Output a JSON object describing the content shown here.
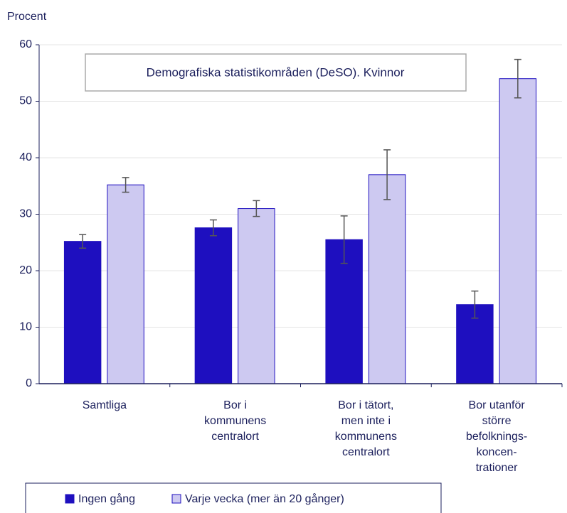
{
  "chart_data": {
    "type": "bar",
    "title": "Demografiska statistikområden (DeSO). Kvinnor",
    "y_label": "Procent",
    "categories": [
      "Samtliga",
      "Bor i\nkommunens\ncentralort",
      "Bor i tätort,\nmen inte i\nkommunens\ncentralort",
      "Bor utanför\nstörre\nbefolknings-\nkoncen-\ntrationer"
    ],
    "series": [
      {
        "name": "Ingen gång",
        "color": "#1e0fbf",
        "values": [
          25.2,
          27.6,
          25.5,
          14.0
        ],
        "errors": [
          1.2,
          1.4,
          4.2,
          2.4
        ]
      },
      {
        "name": "Varje vecka (mer än 20 gånger)",
        "color": "#cdc9f1",
        "values": [
          35.2,
          31.0,
          37.0,
          54.0
        ],
        "errors": [
          1.3,
          1.4,
          4.4,
          3.4
        ]
      }
    ],
    "ylim": [
      0,
      60
    ],
    "yticks": [
      0,
      10,
      20,
      30,
      40,
      50,
      60
    ],
    "grid": true
  }
}
